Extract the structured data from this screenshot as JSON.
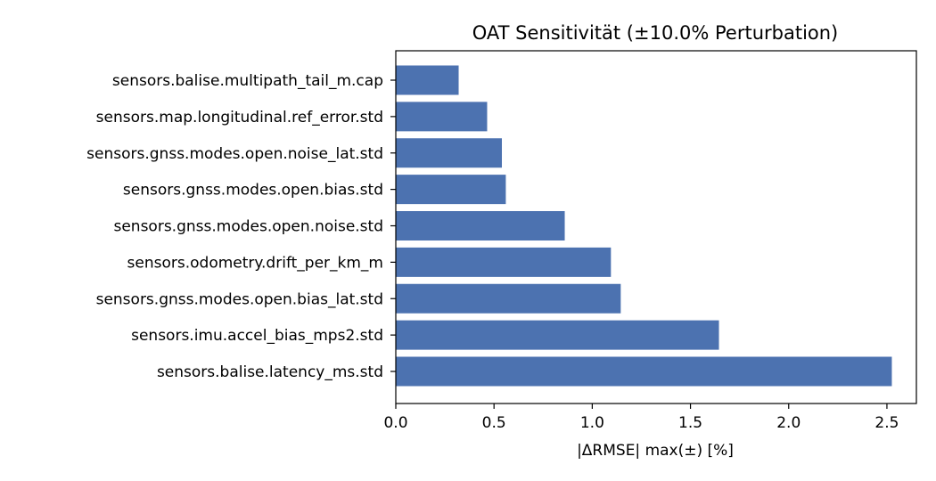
{
  "chart_data": {
    "type": "bar",
    "orientation": "horizontal",
    "title": "OAT Sensitivität (±10.0% Perturbation)",
    "xlabel": "|ΔRMSE| max(±) [%]",
    "ylabel": "",
    "xlim": [
      0,
      2.65
    ],
    "xticks": [
      0.0,
      0.5,
      1.0,
      1.5,
      2.0,
      2.5
    ],
    "xtick_labels": [
      "0.0",
      "0.5",
      "1.0",
      "1.5",
      "2.0",
      "2.5"
    ],
    "grid": false,
    "bar_color": "#4c72b0",
    "categories": [
      "sensors.balise.multipath_tail_m.cap",
      "sensors.map.longitudinal.ref_error.std",
      "sensors.gnss.modes.open.noise_lat.std",
      "sensors.gnss.modes.open.bias.std",
      "sensors.gnss.modes.open.noise.std",
      "sensors.odometry.drift_per_km_m",
      "sensors.gnss.modes.open.bias_lat.std",
      "sensors.imu.accel_bias_mps2.std",
      "sensors.balise.latency_ms.std"
    ],
    "values": [
      0.32,
      0.465,
      0.54,
      0.56,
      0.86,
      1.095,
      1.145,
      1.645,
      2.525
    ]
  }
}
